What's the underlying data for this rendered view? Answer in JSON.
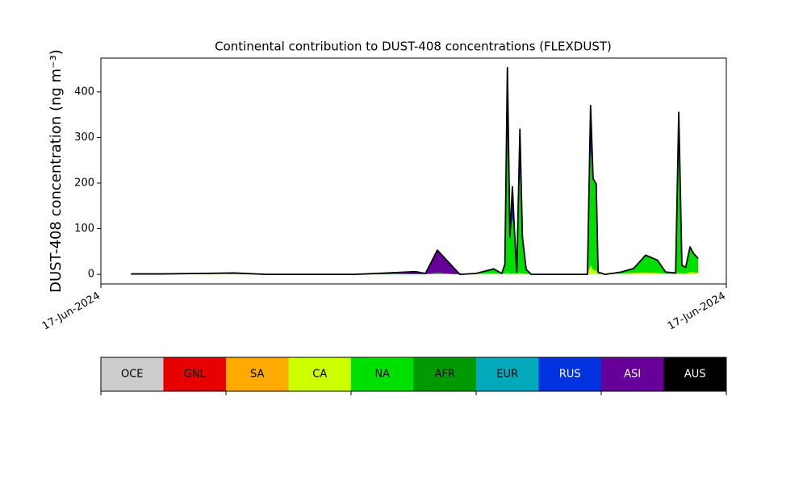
{
  "chart_data": {
    "type": "stacked_area",
    "title": "Continental contribution to DUST-408 concentrations (FLEXDUST)",
    "y_label": "DUST-408 concentration (ng m⁻³)",
    "x": [
      4.8,
      9.7,
      21.3,
      26.5,
      40.6,
      45.8,
      50.3,
      51.9,
      53.8,
      57.4,
      60,
      62.8,
      64.1,
      64.6,
      65,
      65.4,
      65.8,
      66.1,
      66.5,
      67,
      67.4,
      68,
      68.8,
      77.8,
      78.3,
      78.7,
      79.2,
      79.5,
      80.6,
      83.2,
      85.2,
      87.1,
      89,
      90.3,
      91.9,
      92.4,
      92.9,
      93.5,
      94.2,
      94.8,
      95.5
    ],
    "xlim": [
      0,
      100
    ],
    "xticks": [
      {
        "value": 0,
        "label": "17-Jun-2024"
      },
      {
        "value": 100,
        "label": "17-Jun-2024"
      }
    ],
    "ylim": [
      -21,
      474
    ],
    "yticks": [
      0,
      100,
      200,
      300,
      400
    ],
    "series": [
      {
        "name": "CA",
        "color": "#ccff00",
        "values": [
          0,
          0,
          1,
          0,
          0,
          0,
          0,
          0,
          1,
          0,
          2,
          2,
          1,
          2,
          3,
          2,
          2,
          2,
          1,
          3,
          2,
          1,
          0,
          0,
          20,
          10,
          8,
          1,
          0,
          2,
          3,
          4,
          3,
          2,
          1,
          3,
          2,
          2,
          5,
          4,
          4
        ]
      },
      {
        "name": "NA",
        "color": "#00e000",
        "values": [
          1,
          1,
          2,
          0,
          0,
          2,
          1,
          1,
          2,
          0,
          0,
          10,
          1,
          20,
          300,
          80,
          120,
          100,
          4,
          220,
          60,
          10,
          0,
          0,
          250,
          200,
          190,
          4,
          0,
          3,
          10,
          38,
          28,
          3,
          2,
          277,
          18,
          13,
          55,
          41,
          31
        ]
      },
      {
        "name": "ASI",
        "color": "#660099",
        "values": [
          0,
          0,
          0,
          0,
          0,
          1,
          5,
          1,
          50,
          0,
          0,
          0,
          0,
          0,
          0,
          0,
          0,
          0,
          0,
          0,
          0,
          0,
          0,
          0,
          0,
          0,
          0,
          0,
          0,
          0,
          0,
          0,
          0,
          0,
          0,
          0,
          0,
          0,
          0,
          0,
          0
        ]
      },
      {
        "name": "RUS",
        "color": "#0033dd",
        "values": [
          0,
          0,
          0,
          0,
          0,
          0,
          0,
          0,
          0,
          0,
          0,
          0,
          0,
          0,
          150,
          0,
          70,
          0,
          0,
          95,
          20,
          0,
          0,
          0,
          100,
          0,
          0,
          0,
          0,
          0,
          0,
          0,
          0,
          0,
          0,
          75,
          0,
          0,
          0,
          0,
          0
        ]
      }
    ],
    "legend": [
      {
        "name": "OCE",
        "color": "#cccccc"
      },
      {
        "name": "GNL",
        "color": "#e60000"
      },
      {
        "name": "SA",
        "color": "#ffaa00"
      },
      {
        "name": "CA",
        "color": "#ccff00"
      },
      {
        "name": "NA",
        "color": "#00e000"
      },
      {
        "name": "AFR",
        "color": "#009900"
      },
      {
        "name": "EUR",
        "color": "#00aabb"
      },
      {
        "name": "RUS",
        "color": "#0033dd"
      },
      {
        "name": "ASI",
        "color": "#660099"
      },
      {
        "name": "AUS",
        "color": "#000000"
      }
    ],
    "line_color": "#000000"
  }
}
